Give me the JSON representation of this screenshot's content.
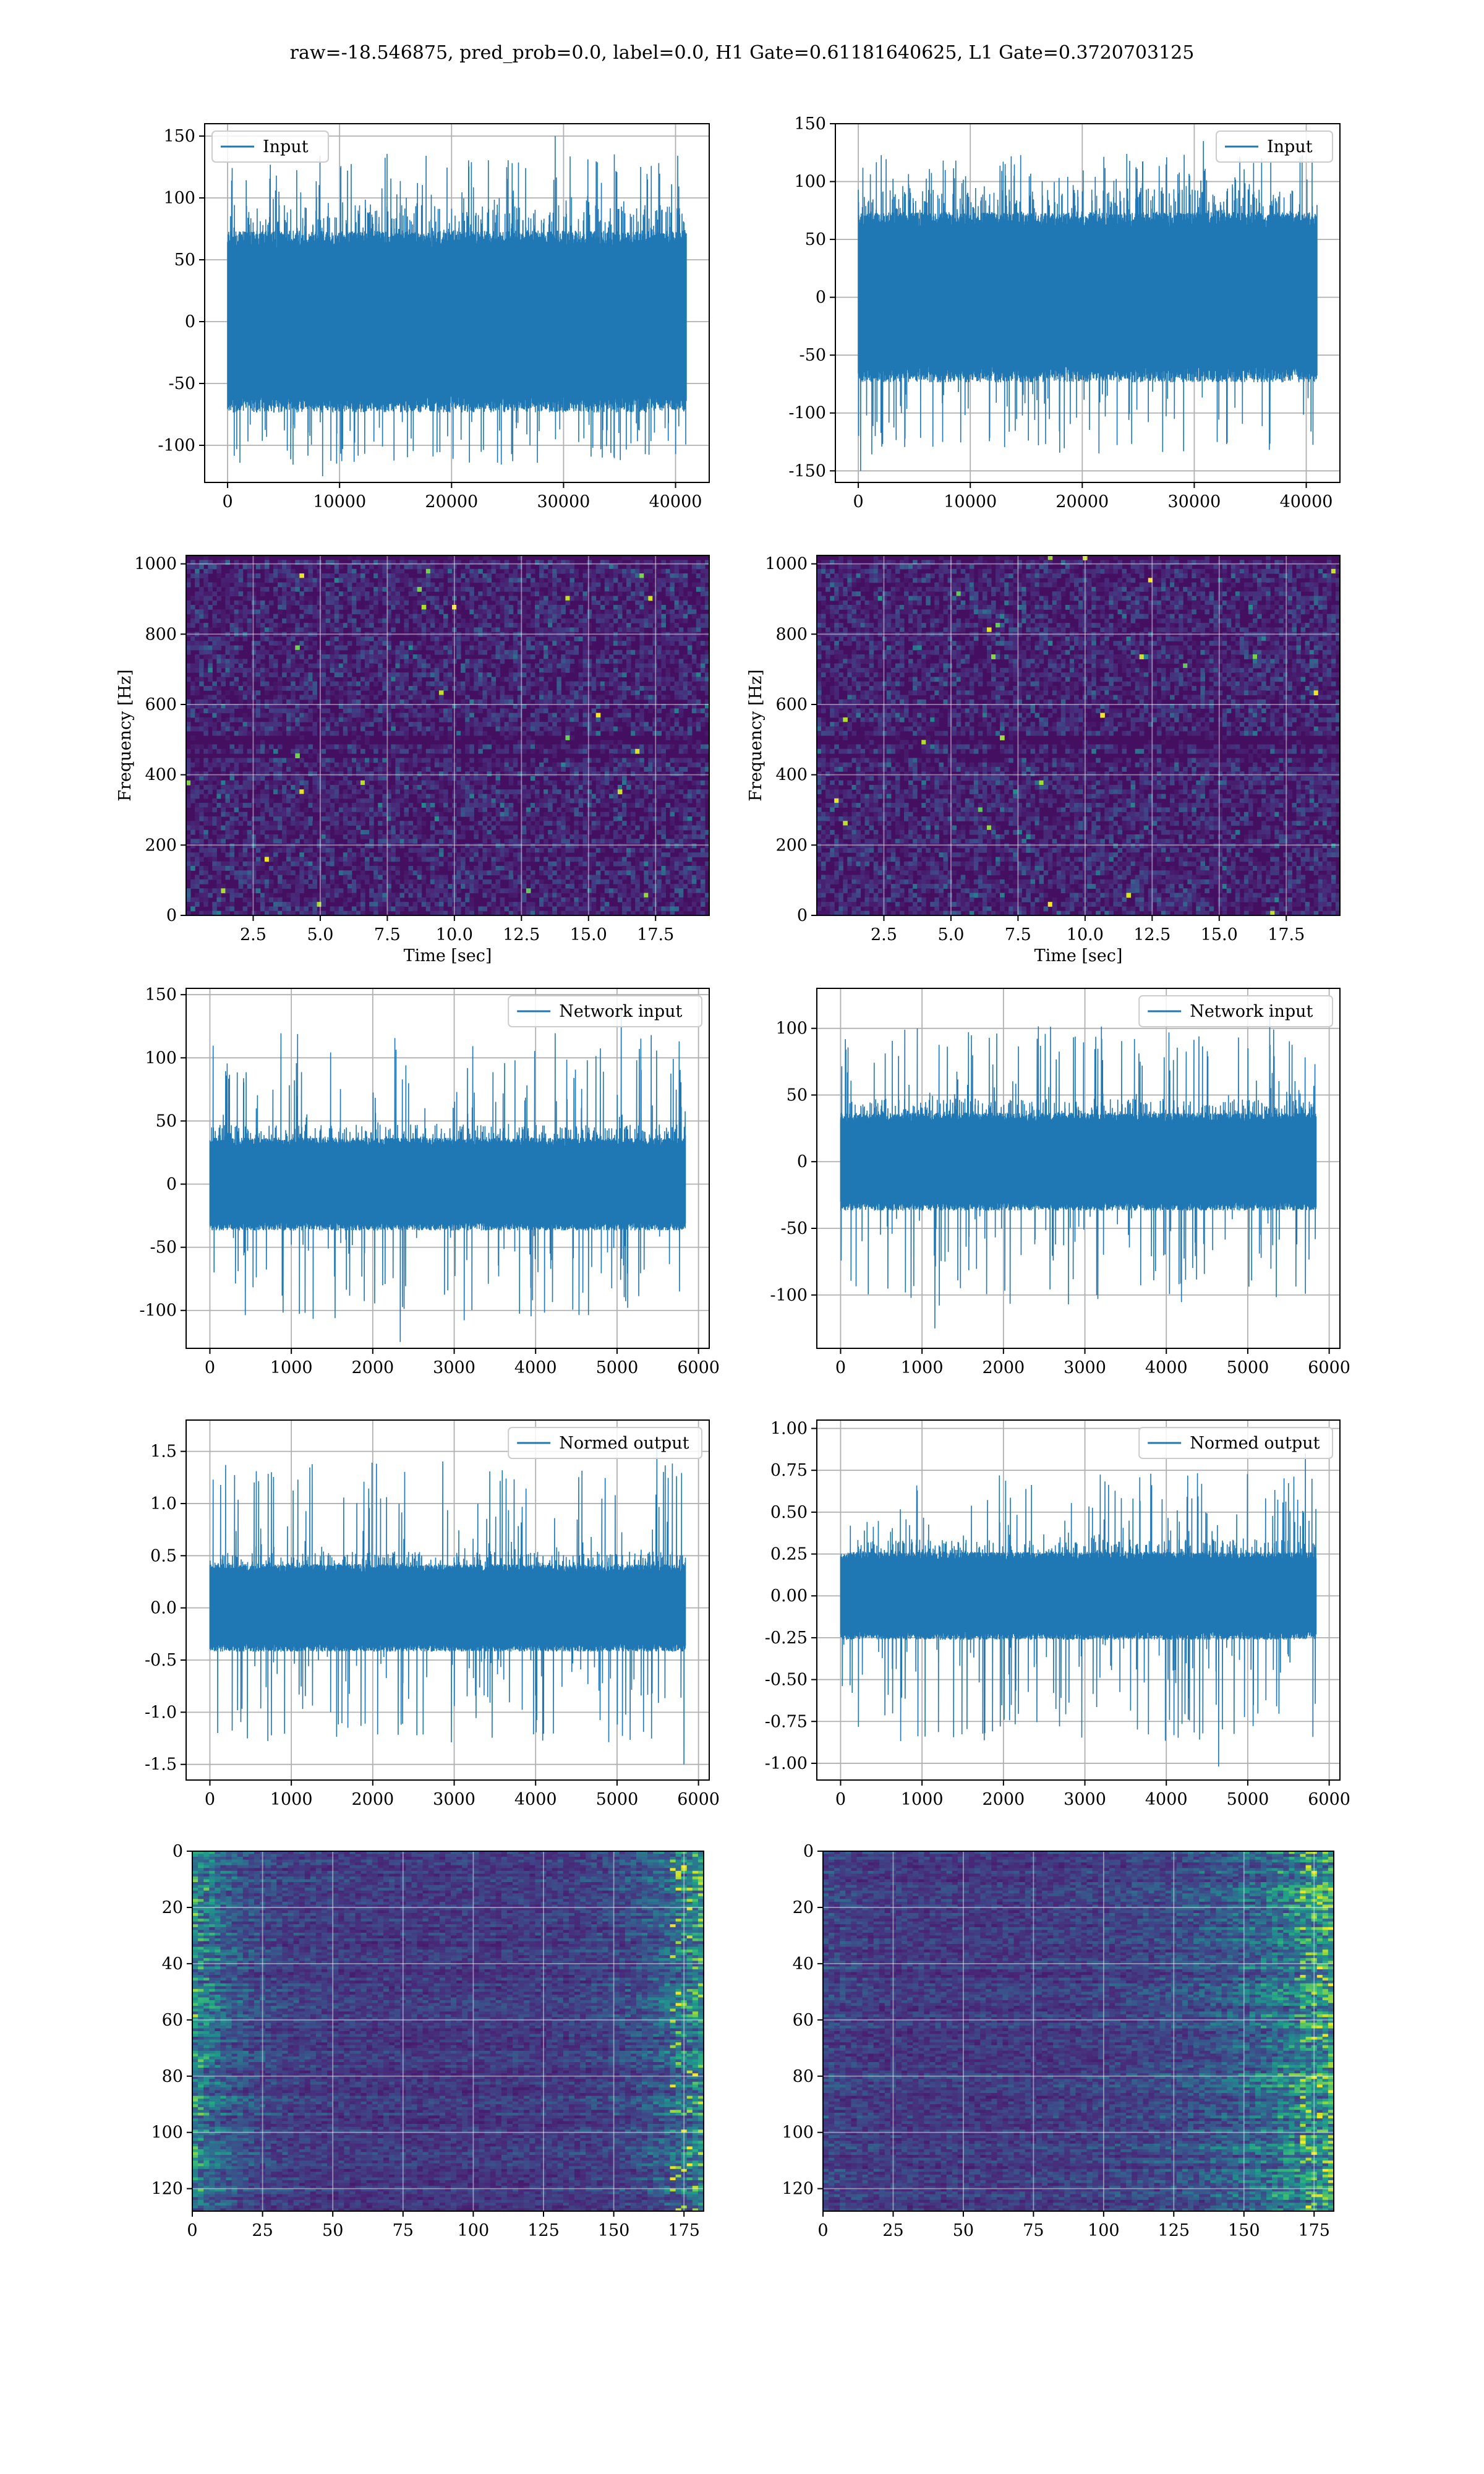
{
  "figure": {
    "title": "raw=-18.546875, pred_prob=0.0, label=0.0, H1 Gate=0.61181640625, L1 Gate=0.3720703125",
    "line_color": "#1f77b4"
  },
  "chart_data": [
    {
      "id": "h1-input",
      "type": "line",
      "series": [
        {
          "name": "Input",
          "envelope_abs": 70,
          "spike_max": 150,
          "spike_min": -125
        }
      ],
      "x_range": [
        0,
        40960
      ],
      "xlim": [
        -2048,
        43008
      ],
      "ylim": [
        -130,
        160
      ],
      "xticks": [
        0,
        10000,
        20000,
        30000,
        40000
      ],
      "yticks": [
        -100,
        -50,
        0,
        50,
        100,
        150
      ],
      "legend": "top-left",
      "grid": true
    },
    {
      "id": "l1-input",
      "type": "line",
      "series": [
        {
          "name": "Input",
          "envelope_abs": 70,
          "spike_max": 135,
          "spike_min": -150
        }
      ],
      "x_range": [
        0,
        40960
      ],
      "xlim": [
        -2048,
        43008
      ],
      "ylim": [
        -160,
        150
      ],
      "xticks": [
        0,
        10000,
        20000,
        30000,
        40000
      ],
      "yticks": [
        -150,
        -100,
        -50,
        0,
        50,
        100,
        150
      ],
      "legend": "top-right",
      "grid": true
    },
    {
      "id": "h1-spectrogram",
      "type": "heatmap",
      "colormap": "viridis",
      "xlim": [
        0,
        19.5
      ],
      "ylim": [
        0,
        1024
      ],
      "xticks": [
        2.5,
        5.0,
        7.5,
        10.0,
        12.5,
        15.0,
        17.5
      ],
      "yticks": [
        0,
        200,
        400,
        600,
        800,
        1000
      ],
      "xlabel": "Time [sec]",
      "ylabel": "Frequency [Hz]",
      "grid": true
    },
    {
      "id": "l1-spectrogram",
      "type": "heatmap",
      "colormap": "viridis",
      "xlim": [
        0,
        19.5
      ],
      "ylim": [
        0,
        1024
      ],
      "xticks": [
        2.5,
        5.0,
        7.5,
        10.0,
        12.5,
        15.0,
        17.5
      ],
      "yticks": [
        0,
        200,
        400,
        600,
        800,
        1000
      ],
      "xlabel": "Time [sec]",
      "ylabel": "Frequency [Hz]",
      "grid": true
    },
    {
      "id": "h1-network-input",
      "type": "line",
      "series": [
        {
          "name": "Network input",
          "envelope_abs": 35,
          "spike_max": 140,
          "spike_min": -125
        }
      ],
      "x_range": [
        0,
        5840
      ],
      "xlim": [
        -292,
        6132
      ],
      "ylim": [
        -130,
        155
      ],
      "xticks": [
        0,
        1000,
        2000,
        3000,
        4000,
        5000,
        6000
      ],
      "yticks": [
        -100,
        -50,
        0,
        50,
        100,
        150
      ],
      "legend": "top-right",
      "grid": true
    },
    {
      "id": "l1-network-input",
      "type": "line",
      "series": [
        {
          "name": "Network input",
          "envelope_abs": 35,
          "spike_max": 118,
          "spike_min": -125
        }
      ],
      "x_range": [
        0,
        5840
      ],
      "xlim": [
        -292,
        6132
      ],
      "ylim": [
        -140,
        130
      ],
      "xticks": [
        0,
        1000,
        2000,
        3000,
        4000,
        5000,
        6000
      ],
      "yticks": [
        -100,
        -50,
        0,
        50,
        100
      ],
      "legend": "top-right",
      "grid": true
    },
    {
      "id": "h1-normed-output",
      "type": "line",
      "series": [
        {
          "name": "Normed output",
          "envelope_abs": 0.4,
          "spike_max": 1.65,
          "spike_min": -1.5
        }
      ],
      "x_range": [
        0,
        5840
      ],
      "xlim": [
        -292,
        6132
      ],
      "ylim": [
        -1.65,
        1.8
      ],
      "xticks": [
        0,
        1000,
        2000,
        3000,
        4000,
        5000,
        6000
      ],
      "yticks": [
        -1.5,
        -1.0,
        -0.5,
        0.0,
        0.5,
        1.0,
        1.5
      ],
      "legend": "top-right",
      "grid": true
    },
    {
      "id": "l1-normed-output",
      "type": "line",
      "series": [
        {
          "name": "Normed output",
          "envelope_abs": 0.25,
          "spike_max": 0.85,
          "spike_min": -1.02
        }
      ],
      "x_range": [
        0,
        5840
      ],
      "xlim": [
        -292,
        6132
      ],
      "ylim": [
        -1.1,
        1.05
      ],
      "xticks": [
        0,
        1000,
        2000,
        3000,
        4000,
        5000,
        6000
      ],
      "yticks": [
        -1.0,
        -0.75,
        -0.5,
        -0.25,
        0.0,
        0.25,
        0.5,
        0.75,
        1.0
      ],
      "legend": "top-right",
      "grid": true
    },
    {
      "id": "h1-feature-map",
      "type": "heatmap",
      "colormap": "viridis",
      "xlim": [
        0,
        182
      ],
      "ylim": [
        128,
        0
      ],
      "xticks": [
        0,
        25,
        50,
        75,
        100,
        125,
        150,
        175
      ],
      "yticks": [
        0,
        20,
        40,
        60,
        80,
        100,
        120
      ],
      "hot_edge": "right-and-left",
      "grid": true
    },
    {
      "id": "l1-feature-map",
      "type": "heatmap",
      "colormap": "viridis",
      "xlim": [
        0,
        182
      ],
      "ylim": [
        128,
        0
      ],
      "xticks": [
        0,
        25,
        50,
        75,
        100,
        125,
        150,
        175
      ],
      "yticks": [
        0,
        20,
        40,
        60,
        80,
        100,
        120
      ],
      "hot_edge": "right",
      "grid": true
    }
  ]
}
